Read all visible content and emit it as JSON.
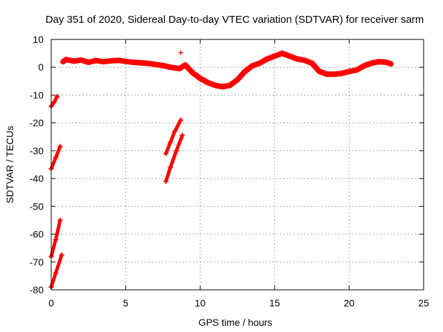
{
  "chart_data": {
    "type": "scatter",
    "title": "Day 351 of 2020, Sidereal Day-to-day VTEC variation (SDTVAR) for receiver sarm",
    "xlabel": "GPS time / hours",
    "ylabel": "SDTVAR / TECUs",
    "xlim": [
      0,
      25
    ],
    "ylim": [
      -80,
      10
    ],
    "xticks": [
      0,
      5,
      10,
      15,
      20,
      25
    ],
    "yticks": [
      10,
      0,
      -10,
      -20,
      -30,
      -40,
      -50,
      -60,
      -70,
      -80
    ],
    "xtick_labels": [
      "0",
      "5",
      "10",
      "15",
      "20",
      "25"
    ],
    "ytick_labels": [
      "10",
      "0",
      "-10",
      "-20",
      "-30",
      "-40",
      "-50",
      "-60",
      "-70",
      "-80"
    ],
    "grid": true,
    "marker": "+",
    "color": "#ff0000",
    "series": [
      {
        "name": "main-trend",
        "points": [
          [
            0.8,
            2.0
          ],
          [
            1.0,
            2.8
          ],
          [
            1.5,
            2.2
          ],
          [
            2.0,
            2.6
          ],
          [
            2.5,
            1.8
          ],
          [
            3.0,
            2.4
          ],
          [
            3.5,
            2.0
          ],
          [
            4.0,
            2.3
          ],
          [
            4.5,
            2.5
          ],
          [
            5.0,
            2.1
          ],
          [
            5.5,
            1.8
          ],
          [
            6.0,
            1.6
          ],
          [
            6.5,
            1.4
          ],
          [
            7.0,
            1.0
          ],
          [
            7.5,
            0.6
          ],
          [
            8.0,
            0.0
          ],
          [
            8.6,
            -0.5
          ],
          [
            9.0,
            0.8
          ],
          [
            9.5,
            -2.0
          ],
          [
            10.0,
            -4.0
          ],
          [
            10.5,
            -5.5
          ],
          [
            11.0,
            -6.5
          ],
          [
            11.5,
            -7.0
          ],
          [
            12.0,
            -6.5
          ],
          [
            12.5,
            -4.5
          ],
          [
            13.0,
            -1.5
          ],
          [
            13.5,
            0.5
          ],
          [
            14.0,
            1.5
          ],
          [
            14.5,
            3.0
          ],
          [
            15.0,
            4.0
          ],
          [
            15.5,
            5.0
          ],
          [
            16.0,
            4.0
          ],
          [
            16.5,
            3.0
          ],
          [
            17.0,
            2.5
          ],
          [
            17.5,
            1.5
          ],
          [
            18.0,
            -1.5
          ],
          [
            18.5,
            -2.5
          ],
          [
            19.0,
            -2.5
          ],
          [
            19.5,
            -2.2
          ],
          [
            20.0,
            -1.5
          ],
          [
            20.5,
            -1.0
          ],
          [
            21.0,
            0.5
          ],
          [
            21.5,
            1.5
          ],
          [
            22.0,
            2.0
          ],
          [
            22.5,
            1.8
          ],
          [
            22.8,
            1.2
          ]
        ]
      },
      {
        "name": "outlier",
        "points": [
          [
            8.7,
            5.2
          ]
        ]
      },
      {
        "name": "streak-a",
        "points": [
          [
            0.0,
            -14.0
          ],
          [
            0.2,
            -12.5
          ],
          [
            0.4,
            -10.5
          ]
        ]
      },
      {
        "name": "streak-b",
        "points": [
          [
            0.0,
            -36.5
          ],
          [
            0.3,
            -32.5
          ],
          [
            0.6,
            -28.5
          ]
        ]
      },
      {
        "name": "streak-c",
        "points": [
          [
            0.0,
            -68.0
          ],
          [
            0.3,
            -62.0
          ],
          [
            0.6,
            -55.0
          ]
        ]
      },
      {
        "name": "streak-d",
        "points": [
          [
            0.0,
            -79.0
          ],
          [
            0.3,
            -74.0
          ],
          [
            0.7,
            -67.5
          ]
        ]
      },
      {
        "name": "streak-e",
        "points": [
          [
            7.7,
            -31.0
          ],
          [
            8.0,
            -27.0
          ],
          [
            8.3,
            -23.0
          ],
          [
            8.7,
            -19.0
          ]
        ]
      },
      {
        "name": "streak-f",
        "points": [
          [
            7.7,
            -41.0
          ],
          [
            8.0,
            -36.0
          ],
          [
            8.4,
            -30.0
          ],
          [
            8.8,
            -24.5
          ]
        ]
      }
    ]
  }
}
